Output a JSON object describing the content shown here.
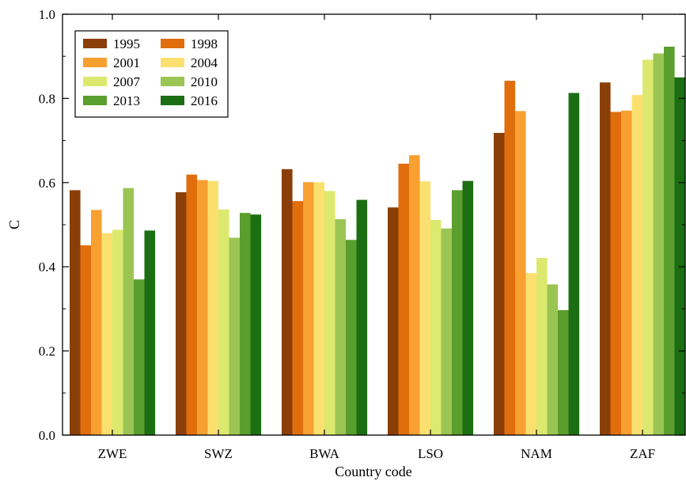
{
  "chart_data": {
    "type": "bar",
    "title": "",
    "xlabel": "Country code",
    "ylabel": "C",
    "ylim": [
      0.0,
      1.0
    ],
    "yticks": [
      "0.0",
      "0.2",
      "0.4",
      "0.6",
      "0.8",
      "1.0"
    ],
    "categories": [
      "ZWE",
      "SWZ",
      "BWA",
      "LSO",
      "NAM",
      "ZAF"
    ],
    "legend_position": "top-left",
    "series": [
      {
        "name": "1995",
        "color": "#8b3f08",
        "values": [
          0.582,
          0.577,
          0.632,
          0.541,
          0.718,
          0.838
        ]
      },
      {
        "name": "1998",
        "color": "#e06e0c",
        "values": [
          0.451,
          0.619,
          0.556,
          0.645,
          0.842,
          0.768
        ]
      },
      {
        "name": "2001",
        "color": "#f8a030",
        "values": [
          0.535,
          0.606,
          0.601,
          0.665,
          0.77,
          0.771
        ]
      },
      {
        "name": "2004",
        "color": "#fbe070",
        "values": [
          0.48,
          0.604,
          0.601,
          0.603,
          0.385,
          0.808
        ]
      },
      {
        "name": "2007",
        "color": "#dce96e",
        "values": [
          0.488,
          0.536,
          0.58,
          0.511,
          0.421,
          0.892
        ]
      },
      {
        "name": "2010",
        "color": "#9bc553",
        "values": [
          0.587,
          0.469,
          0.513,
          0.491,
          0.358,
          0.907
        ]
      },
      {
        "name": "2013",
        "color": "#5a9e2e",
        "values": [
          0.37,
          0.528,
          0.464,
          0.582,
          0.297,
          0.923
        ]
      },
      {
        "name": "2016",
        "color": "#1c6e12",
        "values": [
          0.486,
          0.524,
          0.559,
          0.604,
          0.813,
          0.85
        ]
      }
    ]
  }
}
